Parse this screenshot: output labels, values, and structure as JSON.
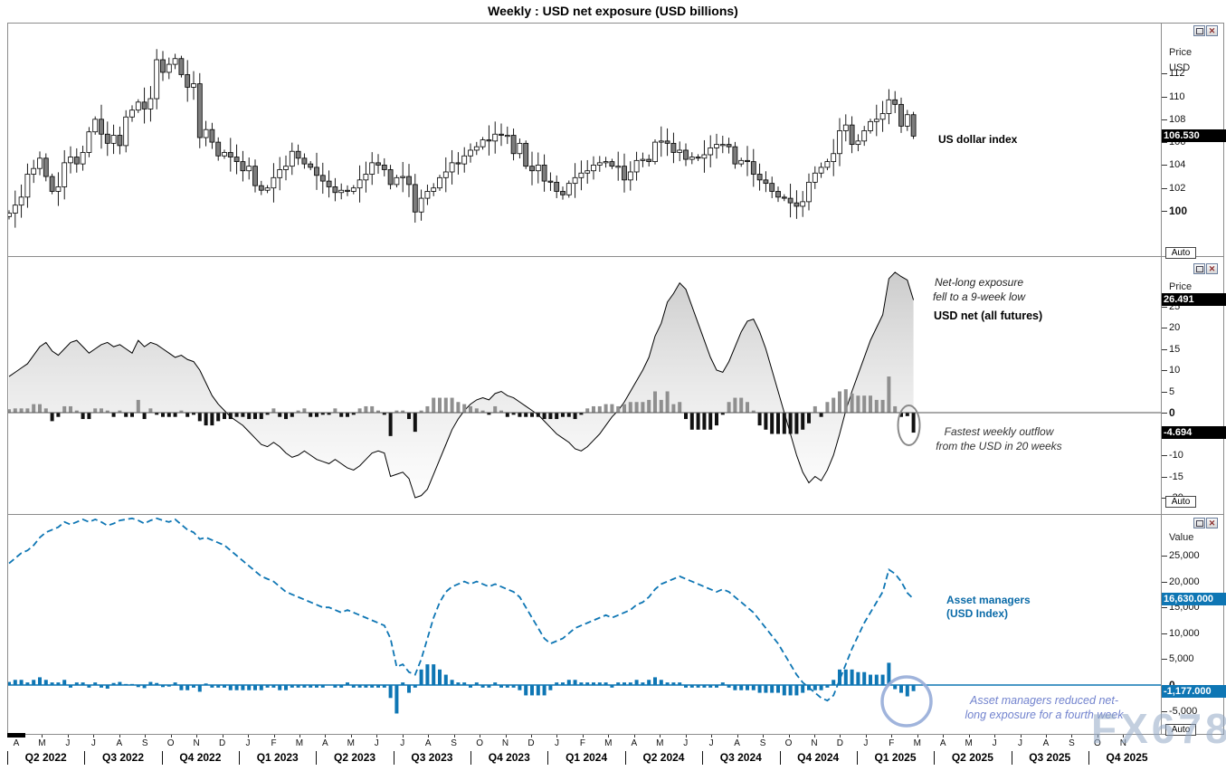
{
  "title": "Weekly : USD net exposure (USD billions)",
  "watermark": "FX678",
  "window_controls": {
    "close_glyph": "✕"
  },
  "axis_strip": {
    "months": [
      "A",
      "M",
      "J",
      "J",
      "A",
      "S",
      "O",
      "N",
      "D",
      "J",
      "F",
      "M",
      "A",
      "M",
      "J",
      "J",
      "A",
      "S",
      "O",
      "N",
      "D",
      "J",
      "F",
      "M",
      "A",
      "M",
      "J",
      "J",
      "A",
      "S",
      "O",
      "N",
      "D",
      "J",
      "F",
      "M",
      "A",
      "M",
      "J",
      "J",
      "A",
      "S",
      "O",
      "N"
    ],
    "quarters": [
      "Q2 2022",
      "Q3 2022",
      "Q4 2022",
      "Q1 2023",
      "Q2 2023",
      "Q3 2023",
      "Q4 2023",
      "Q1 2024",
      "Q2 2024",
      "Q3 2024",
      "Q4 2024",
      "Q1 2025",
      "Q2 2025",
      "Q3 2025",
      "Q4 2025"
    ]
  },
  "panels": {
    "price": {
      "axis_labels": [
        "Price",
        "USD"
      ],
      "auto_label": "Auto",
      "ticks": [
        {
          "label": "112",
          "v": 112
        },
        {
          "label": "110",
          "v": 110
        },
        {
          "label": "108",
          "v": 108
        },
        {
          "label": "106",
          "v": 106
        },
        {
          "label": "104",
          "v": 104
        },
        {
          "label": "102",
          "v": 102
        },
        {
          "label": "100",
          "v": 100,
          "bold": true
        }
      ],
      "tags": [
        {
          "text": "106.530",
          "value": 106.53,
          "style": "dark"
        }
      ]
    },
    "net": {
      "axis_labels": [
        "Price",
        "USD"
      ],
      "auto_label": "Auto",
      "ticks": [
        {
          "label": "25",
          "v": 25
        },
        {
          "label": "20",
          "v": 20
        },
        {
          "label": "15",
          "v": 15
        },
        {
          "label": "10",
          "v": 10
        },
        {
          "label": "5",
          "v": 5
        },
        {
          "label": "0",
          "v": 0,
          "bold": true
        },
        {
          "label": "-5",
          "v": -5
        },
        {
          "label": "-10",
          "v": -10
        },
        {
          "label": "-15",
          "v": -15
        },
        {
          "label": "-20",
          "v": -20
        }
      ],
      "tags": [
        {
          "text": "26.491",
          "value": 26.491,
          "style": "dark"
        },
        {
          "text": "-4.694",
          "value": -4.694,
          "style": "dark"
        }
      ]
    },
    "am": {
      "axis_labels": [
        "Value"
      ],
      "auto_label": "Auto",
      "ticks": [
        {
          "label": "25,000",
          "v": 25000
        },
        {
          "label": "20,000",
          "v": 20000
        },
        {
          "label": "15,000",
          "v": 15000
        },
        {
          "label": "10,000",
          "v": 10000
        },
        {
          "label": "5,000",
          "v": 5000
        },
        {
          "label": "0",
          "v": 0,
          "bold": true
        },
        {
          "label": "-5,000",
          "v": -5000
        }
      ],
      "tags": [
        {
          "text": "16,630.000",
          "value": 16630,
          "style": "blue"
        },
        {
          "text": "-1,177.000",
          "value": -1177,
          "style": "blue"
        }
      ]
    }
  },
  "annotations": {
    "price_series_label": "US dollar index",
    "net_callout": {
      "line1": "Net-long exposure",
      "line2": "fell to a 9-week low"
    },
    "net_series_label": "USD net (all futures)",
    "outflow_callout": {
      "line1": "Fastest weekly outflow",
      "line2": "from the USD in 20 weeks"
    },
    "am_series_label": {
      "line1": "Asset managers",
      "line2": "(USD Index)"
    },
    "am_callout": {
      "line1": "Asset managers reduced net-",
      "line2": "long exposure for a fourth week"
    }
  },
  "colors": {
    "blue": "#0E76B4",
    "bar_positive": "#8F8F8F",
    "bar_negative": "#111111",
    "candle_down_fill": "#7D7D7D",
    "candle_up_fill": "#FFFFFF",
    "tag_dark_bg": "#000000",
    "am_label_blue": "#0B6BA8",
    "am_callout_blue": "#7283CE",
    "watermark": "#93A9C6",
    "area_outline": "#000000"
  },
  "chart_data": [
    {
      "type": "candlestick",
      "name": "US dollar index",
      "timeframe": "weekly",
      "x_range": "Apr 2022 - Feb 2025",
      "first_open": 99.5,
      "last_value": 106.53,
      "yticks": [
        112,
        110,
        108,
        106,
        104,
        102,
        100
      ],
      "closes": [
        99.8,
        100.5,
        101.2,
        103.2,
        103.7,
        104.6,
        103.0,
        101.7,
        102.1,
        104.2,
        104.7,
        104.1,
        105.1,
        106.9,
        108.0,
        106.7,
        105.9,
        106.6,
        105.7,
        108.2,
        108.8,
        109.5,
        108.9,
        109.8,
        113.2,
        112.1,
        112.8,
        113.3,
        111.9,
        110.8,
        111.1,
        106.4,
        107.1,
        106.0,
        104.8,
        105.1,
        104.7,
        104.3,
        103.5,
        103.9,
        102.2,
        101.8,
        102.0,
        102.9,
        103.6,
        103.9,
        105.2,
        104.6,
        104.1,
        103.8,
        103.1,
        102.6,
        102.1,
        101.6,
        101.8,
        101.7,
        102.0,
        102.7,
        103.2,
        104.2,
        104.0,
        103.6,
        102.3,
        102.9,
        103.0,
        102.3,
        99.9,
        101.1,
        101.7,
        102.0,
        102.9,
        103.4,
        104.2,
        104.1,
        104.8,
        105.3,
        105.6,
        106.2,
        106.1,
        106.7,
        106.6,
        106.6,
        105.0,
        105.9,
        103.9,
        103.5,
        104.0,
        102.6,
        102.5,
        101.7,
        101.4,
        102.4,
        102.9,
        103.3,
        103.5,
        104.0,
        104.2,
        104.3,
        103.9,
        103.9,
        102.7,
        103.4,
        104.4,
        104.5,
        104.3,
        106.0,
        106.1,
        105.9,
        105.1,
        105.3,
        104.5,
        104.7,
        104.6,
        104.9,
        105.5,
        105.8,
        105.8,
        105.6,
        104.1,
        104.4,
        104.3,
        103.2,
        102.7,
        102.4,
        101.7,
        101.2,
        101.1,
        100.7,
        100.4,
        100.8,
        102.5,
        103.3,
        103.8,
        104.3,
        105.0,
        107.0,
        107.5,
        105.8,
        106.1,
        107.0,
        107.8,
        108.0,
        108.5,
        109.7,
        109.3,
        107.4,
        108.4,
        106.53
      ]
    },
    {
      "type": "area+bar",
      "name": "USD net (all futures)",
      "unit": "USD billions",
      "bars": "weekly change (first difference of level)",
      "first_change": 0.8,
      "last_level": 26.491,
      "last_change": -4.694,
      "yticks": [
        25,
        20,
        15,
        10,
        5,
        0,
        -5,
        -10,
        -15,
        -20
      ],
      "level": [
        8.5,
        9.5,
        10.5,
        11.5,
        13.5,
        15.5,
        16.5,
        14.5,
        13.5,
        15,
        16.5,
        17,
        15.5,
        14,
        15,
        16,
        16.5,
        15.5,
        16,
        15,
        14,
        17,
        15.5,
        16.5,
        16,
        15,
        14,
        13,
        13.5,
        12.5,
        12,
        10,
        7,
        4,
        2,
        0.5,
        -1,
        -2,
        -3,
        -4.5,
        -6,
        -7.5,
        -8,
        -7,
        -8,
        -9.5,
        -10.5,
        -10,
        -9,
        -10,
        -11,
        -11.5,
        -12,
        -11,
        -12,
        -13,
        -13.5,
        -12.5,
        -11,
        -9.5,
        -9,
        -9.5,
        -15,
        -14.5,
        -14,
        -15.5,
        -20,
        -19.5,
        -18,
        -14.5,
        -11,
        -7.5,
        -4,
        -1.5,
        0.5,
        2,
        3,
        3.5,
        3,
        4.5,
        5,
        4,
        3.5,
        2.5,
        1.5,
        0.5,
        -0.5,
        -2,
        -3.5,
        -5,
        -6,
        -7,
        -8.5,
        -9,
        -8,
        -6.5,
        -5,
        -3,
        -1,
        0.5,
        2.5,
        5,
        7.5,
        10,
        13,
        18,
        21,
        26,
        28,
        30.5,
        29,
        25,
        21,
        17,
        13,
        10,
        9.5,
        12,
        15.5,
        19,
        21.5,
        22,
        19,
        15,
        10,
        5,
        0,
        -5,
        -10,
        -14,
        -16.5,
        -15,
        -16,
        -13.5,
        -10,
        -5,
        0.5,
        5,
        9,
        13,
        17,
        20,
        23,
        31.5,
        33,
        32,
        31.185,
        26.491
      ]
    },
    {
      "type": "line+bar",
      "name": "Asset managers (USD Index)",
      "unit": "contracts",
      "line_style": "dashed",
      "bars": "weekly change (first difference of level)",
      "first_change": 600,
      "last_level": 16630.0,
      "last_change": -1177.0,
      "yticks": [
        25000,
        20000,
        15000,
        10000,
        5000,
        0,
        -5000
      ],
      "level": [
        23500,
        24500,
        25500,
        26000,
        27000,
        28500,
        29500,
        30000,
        30500,
        31500,
        31000,
        31500,
        32000,
        31500,
        32000,
        31500,
        30800,
        31200,
        31800,
        32000,
        32200,
        31800,
        31200,
        31800,
        32200,
        31800,
        31500,
        32000,
        31000,
        30000,
        29500,
        28200,
        28500,
        28000,
        27500,
        27000,
        26000,
        25000,
        24000,
        23000,
        22000,
        21000,
        20500,
        20000,
        19000,
        18000,
        17500,
        17000,
        16500,
        16000,
        15500,
        15000,
        15000,
        14500,
        14000,
        14500,
        14000,
        13500,
        13000,
        12500,
        12000,
        11500,
        9000,
        3500,
        4000,
        2500,
        2000,
        5000,
        9000,
        13000,
        16000,
        18000,
        19000,
        19500,
        20000,
        19500,
        20000,
        19500,
        19000,
        19500,
        19000,
        18500,
        18000,
        17000,
        15000,
        13000,
        11000,
        9000,
        8000,
        8500,
        9000,
        10000,
        11000,
        11500,
        12000,
        12500,
        13000,
        13500,
        13000,
        13500,
        14000,
        14500,
        15500,
        16000,
        17000,
        18500,
        19500,
        20000,
        20500,
        21000,
        20500,
        20000,
        19500,
        19000,
        18500,
        18000,
        18500,
        18000,
        17000,
        16000,
        15000,
        14000,
        12500,
        11000,
        9500,
        8000,
        6000,
        4000,
        2000,
        500,
        -500,
        -1500,
        -2500,
        -3000,
        -2000,
        1000,
        4000,
        7000,
        9500,
        12000,
        14000,
        16000,
        18000,
        22300,
        21500,
        20000,
        17807,
        16630
      ]
    }
  ]
}
